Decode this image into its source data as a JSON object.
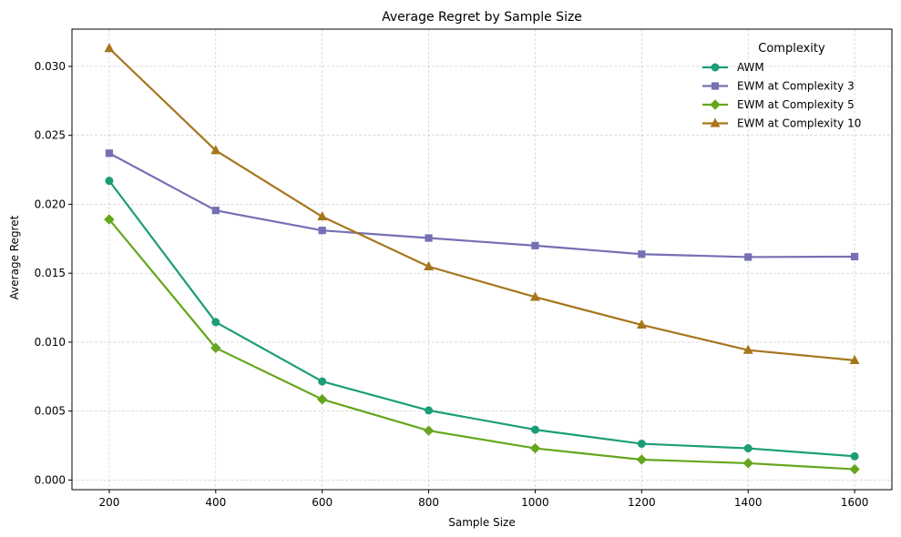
{
  "chart_data": {
    "type": "line",
    "title": "Average Regret by Sample Size",
    "xlabel": "Sample Size",
    "ylabel": "Average Regret",
    "x": [
      200,
      400,
      600,
      800,
      1000,
      1200,
      1400,
      1600
    ],
    "xlim": [
      130,
      1670
    ],
    "ylim": [
      -0.0007,
      0.0327
    ],
    "xticks": [
      200,
      400,
      600,
      800,
      1000,
      1200,
      1400,
      1600
    ],
    "xtick_labels": [
      "200",
      "400",
      "600",
      "800",
      "1000",
      "1200",
      "1400",
      "1600"
    ],
    "yticks": [
      0.0,
      0.005,
      0.01,
      0.015,
      0.02,
      0.025,
      0.03
    ],
    "ytick_labels": [
      "0.000",
      "0.005",
      "0.010",
      "0.015",
      "0.020",
      "0.025",
      "0.030"
    ],
    "grid": true,
    "legend": {
      "title": "Complexity",
      "placement": "top-right"
    },
    "series": [
      {
        "name": "AWM",
        "color": "#1b9e77",
        "marker": "circle",
        "values": [
          0.0217,
          0.01145,
          0.00715,
          0.00505,
          0.00365,
          0.00263,
          0.0023,
          0.00172
        ]
      },
      {
        "name": "EWM at Complexity 3",
        "color": "#7570b3",
        "marker": "square",
        "values": [
          0.0237,
          0.01955,
          0.0181,
          0.01755,
          0.017,
          0.01638,
          0.01617,
          0.0162
        ]
      },
      {
        "name": "EWM at Complexity 5",
        "color": "#66a61e",
        "marker": "diamond",
        "values": [
          0.0189,
          0.00958,
          0.00585,
          0.00358,
          0.0023,
          0.00148,
          0.00122,
          0.00078
        ]
      },
      {
        "name": "EWM at Complexity 10",
        "color": "#a6761d",
        "marker": "triangle",
        "values": [
          0.0313,
          0.0239,
          0.0191,
          0.01548,
          0.01327,
          0.01125,
          0.00942,
          0.00868
        ]
      }
    ]
  }
}
